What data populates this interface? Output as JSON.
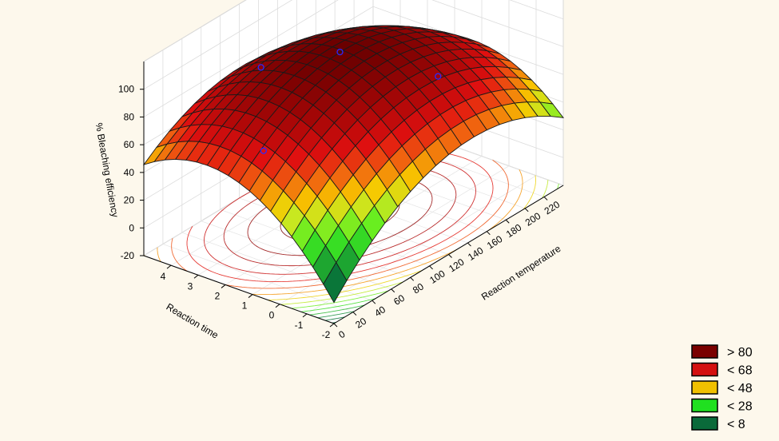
{
  "chart_data": {
    "type": "surface3d",
    "title": "",
    "x_axis": {
      "label": "Reaction temperature",
      "ticks": [
        "0",
        "20",
        "40",
        "60",
        "80",
        "100",
        "120",
        "140",
        "160",
        "180",
        "200",
        "220"
      ],
      "range": [
        0,
        240
      ]
    },
    "y_axis": {
      "label": "Reaction time",
      "ticks": [
        "-2",
        "-1",
        "0",
        "1",
        "2",
        "3",
        "4"
      ],
      "range": [
        -2,
        5
      ]
    },
    "z_axis": {
      "label": "% Bleaching efficiency",
      "ticks": [
        "-20",
        "0",
        "20",
        "40",
        "60",
        "80",
        "100"
      ],
      "range": [
        -20,
        120
      ]
    },
    "surface": {
      "model": "quadratic",
      "peak": {
        "x": 120,
        "y": 2.0,
        "z": 100
      },
      "corners": [
        {
          "x": 0,
          "y": -2,
          "z": -12
        },
        {
          "x": 240,
          "y": -2,
          "z": 36
        },
        {
          "x": 0,
          "y": 5,
          "z": 36
        },
        {
          "x": 240,
          "y": 5,
          "z": 30
        }
      ]
    },
    "observed_points": [
      {
        "x": 80,
        "y": 3.5,
        "z": 93
      },
      {
        "x": 120,
        "y": 2.0,
        "z": 98
      },
      {
        "x": 40,
        "y": 2.0,
        "z": 60
      },
      {
        "x": 180,
        "y": 0.5,
        "z": 66
      }
    ],
    "legend": [
      {
        "label": "> 80",
        "color": "#7a0000"
      },
      {
        "label": "< 68",
        "color": "#d41010"
      },
      {
        "label": "< 48",
        "color": "#f0c000"
      },
      {
        "label": "< 28",
        "color": "#20e020"
      },
      {
        "label": "< 8",
        "color": "#0a6a3a"
      }
    ],
    "legend_position": "bottom-right",
    "grid": true
  }
}
